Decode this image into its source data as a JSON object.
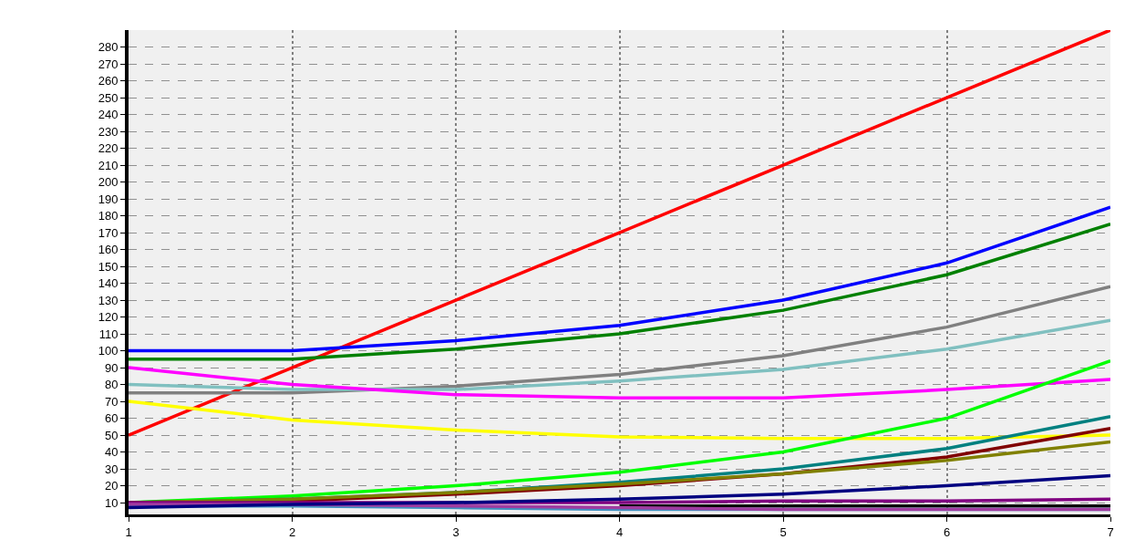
{
  "chart_data": {
    "type": "line",
    "x": [
      1,
      2,
      3,
      4,
      5,
      6,
      7
    ],
    "series": [
      {
        "color": "#ff0000",
        "values": [
          50,
          90,
          130,
          170,
          210,
          250,
          290
        ]
      },
      {
        "color": "#0000ff",
        "values": [
          100,
          100,
          106,
          115,
          130,
          152,
          185
        ]
      },
      {
        "color": "#008000",
        "values": [
          95,
          95,
          101,
          110,
          124,
          145,
          175
        ]
      },
      {
        "color": "#808080",
        "values": [
          75,
          75,
          79,
          86,
          97,
          114,
          138
        ]
      },
      {
        "color": "#80c0c0",
        "values": [
          80,
          77,
          77,
          82,
          89,
          101,
          118
        ]
      },
      {
        "color": "#ff00ff",
        "values": [
          90,
          80,
          74,
          72,
          72,
          77,
          83
        ]
      },
      {
        "color": "#ffff00",
        "values": [
          70,
          59,
          53,
          49,
          48,
          48,
          50
        ]
      },
      {
        "color": "#00ff00",
        "values": [
          10,
          14,
          20,
          28,
          40,
          60,
          94
        ]
      },
      {
        "color": "#008080",
        "values": [
          10,
          12,
          16,
          22,
          30,
          42,
          61
        ]
      },
      {
        "color": "#800000",
        "values": [
          10,
          11,
          15,
          20,
          27,
          37,
          54
        ]
      },
      {
        "color": "#808000",
        "values": [
          10,
          12,
          16,
          21,
          27,
          35,
          46
        ]
      },
      {
        "color": "#000000",
        "values": [
          null,
          null,
          null,
          8,
          8,
          8,
          8
        ]
      },
      {
        "color": "#800080",
        "values": [
          10,
          10,
          10,
          10,
          11,
          11,
          12
        ]
      },
      {
        "color": "#4090c0",
        "values": [
          8,
          8,
          7,
          6,
          6,
          6,
          6
        ]
      },
      {
        "color": "#a03ca0",
        "values": [
          9,
          9,
          8,
          7,
          6,
          6,
          6
        ]
      },
      {
        "color": "#000080",
        "values": [
          7,
          9,
          10,
          12,
          15,
          20,
          26
        ]
      }
    ],
    "xlim": [
      1,
      7
    ],
    "xticks": [
      1,
      2,
      3,
      4,
      5,
      6,
      7
    ],
    "ylim": [
      3,
      290
    ],
    "yticks": [
      10,
      20,
      30,
      40,
      50,
      60,
      70,
      80,
      90,
      100,
      110,
      120,
      130,
      140,
      150,
      160,
      170,
      180,
      190,
      200,
      210,
      220,
      230,
      240,
      250,
      260,
      270,
      280
    ],
    "grid": true,
    "marker": "none",
    "line_style": "solid"
  }
}
